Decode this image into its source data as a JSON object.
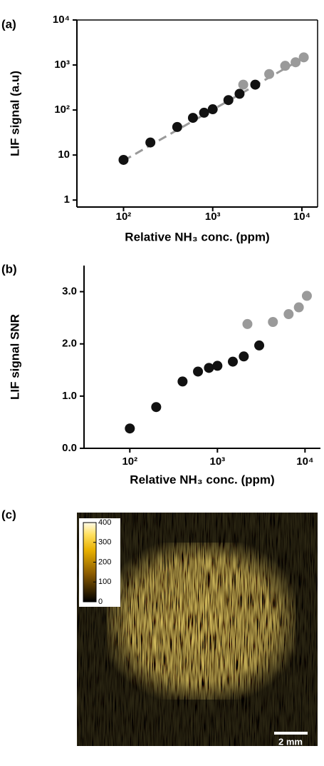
{
  "chart_data": [
    {
      "type": "scatter",
      "panel": "(a)",
      "xlabel": "Relative NH₃ conc. (ppm)",
      "ylabel": "LIF signal (a.u)",
      "xscale": "log",
      "yscale": "log",
      "box": true,
      "xlim": [
        30,
        15000
      ],
      "ylim": [
        0.7,
        10000
      ],
      "xticks": [
        {
          "value": 100,
          "label": "10²"
        },
        {
          "value": 1000,
          "label": "10³"
        },
        {
          "value": 10000,
          "label": "10⁴"
        }
      ],
      "yticks": [
        1,
        10,
        {
          "value": 100,
          "label": "10²"
        },
        {
          "value": 1000,
          "label": "10³"
        },
        {
          "value": 10000,
          "label": "10⁴"
        }
      ],
      "fit": {
        "x": [
          100,
          10500
        ],
        "values": [
          7.5,
          1450
        ],
        "color": "#9a9a9a"
      },
      "series": [
        {
          "color": "#111111",
          "x": [
            100,
            200,
            400,
            600,
            800,
            1000,
            1500,
            2000,
            3000
          ],
          "values": [
            7.8,
            19,
            42,
            67,
            87,
            104,
            166,
            229,
            366
          ]
        },
        {
          "color": "#9a9a9a",
          "x": [
            2200,
            4300,
            6500,
            8500,
            10500
          ],
          "values": [
            366,
            630,
            960,
            1150,
            1480
          ]
        }
      ]
    },
    {
      "type": "scatter",
      "panel": "(b)",
      "xlabel": "Relative NH₃ conc. (ppm)",
      "ylabel": "LIF signal SNR",
      "xscale": "log",
      "yscale": "linear",
      "box": false,
      "xlim": [
        30,
        15000
      ],
      "ylim": [
        0,
        3.5
      ],
      "xticks": [
        {
          "value": 100,
          "label": "10²"
        },
        {
          "value": 1000,
          "label": "10³"
        },
        {
          "value": 10000,
          "label": "10⁴"
        }
      ],
      "yticks": [
        {
          "value": 0,
          "label": "0.0"
        },
        {
          "value": 1,
          "label": "1.0"
        },
        {
          "value": 2,
          "label": "2.0"
        },
        {
          "value": 3,
          "label": "3.0"
        }
      ],
      "series": [
        {
          "color": "#111111",
          "x": [
            100,
            200,
            400,
            600,
            800,
            1000,
            1500,
            2000,
            3000
          ],
          "values": [
            0.38,
            0.79,
            1.28,
            1.47,
            1.54,
            1.58,
            1.66,
            1.76,
            1.97
          ]
        },
        {
          "color": "#9a9a9a",
          "x": [
            2200,
            4300,
            6500,
            8500,
            10500
          ],
          "values": [
            2.38,
            2.42,
            2.57,
            2.7,
            2.92
          ]
        }
      ]
    },
    {
      "type": "image",
      "panel": "(c)",
      "colorbar": {
        "lim": [
          0,
          400
        ],
        "ticks": [
          0,
          100,
          200,
          300,
          400
        ]
      },
      "scalebar": "2 mm"
    }
  ]
}
